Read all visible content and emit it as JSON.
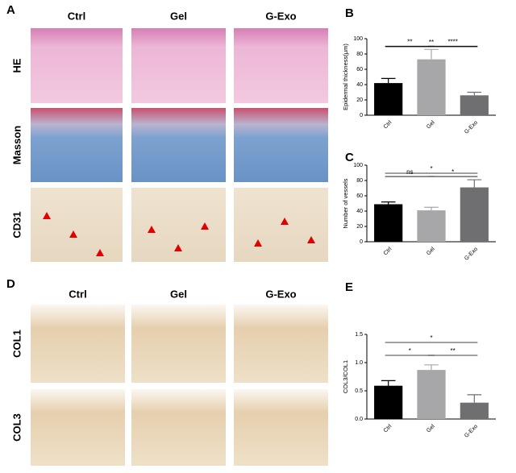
{
  "figure": {
    "panel_a": {
      "label": "A",
      "columns": [
        "Ctrl",
        "Gel",
        "G-Exo"
      ],
      "rows": [
        "HE",
        "Masson",
        "CD31"
      ]
    },
    "panel_d": {
      "label": "D",
      "columns": [
        "Ctrl",
        "Gel",
        "G-Exo"
      ],
      "rows": [
        "COL1",
        "COL3"
      ]
    }
  },
  "chart_data": [
    {
      "type": "bar",
      "panel_label": "B",
      "y_label": "Epidermal thickness(μm)",
      "categories": [
        "Ctrl",
        "Gel",
        "G-Exo"
      ],
      "values": [
        42,
        73,
        26
      ],
      "errors": [
        6,
        13,
        4
      ],
      "colors": [
        "#000000",
        "#a7a7aa",
        "#6f6f72"
      ],
      "ylim": [
        0,
        100
      ],
      "yticks": [
        0,
        20,
        40,
        60,
        80,
        100
      ],
      "annotations": [
        {
          "label": "**",
          "between": [
            "Ctrl",
            "G-Exo"
          ]
        },
        {
          "label": "**",
          "between": [
            "Ctrl",
            "Gel"
          ]
        },
        {
          "label": "****",
          "between": [
            "Gel",
            "G-Exo"
          ]
        }
      ]
    },
    {
      "type": "bar",
      "panel_label": "C",
      "y_label": "Number of vessels",
      "categories": [
        "Ctrl",
        "Gel",
        "G-Exo"
      ],
      "values": [
        49,
        41,
        71
      ],
      "errors": [
        3,
        4,
        10
      ],
      "colors": [
        "#000000",
        "#a7a7aa",
        "#6f6f72"
      ],
      "ylim": [
        0,
        100
      ],
      "yticks": [
        0,
        20,
        40,
        60,
        80,
        100
      ],
      "annotations": [
        {
          "label": "*",
          "between": [
            "Ctrl",
            "G-Exo"
          ]
        },
        {
          "label": "ns",
          "between": [
            "Ctrl",
            "Gel"
          ]
        },
        {
          "label": "*",
          "between": [
            "Gel",
            "G-Exo"
          ]
        }
      ]
    },
    {
      "type": "bar",
      "panel_label": "E",
      "y_label": "COL3/COL1",
      "categories": [
        "Ctrl",
        "Gel",
        "G-Exo"
      ],
      "values": [
        0.59,
        0.87,
        0.29
      ],
      "errors": [
        0.09,
        0.09,
        0.14
      ],
      "colors": [
        "#000000",
        "#a7a7aa",
        "#6f6f72"
      ],
      "ylim": [
        0,
        1.5
      ],
      "yticks": [
        {
          "value": 0,
          "label": "0.0"
        },
        {
          "value": 0.5,
          "label": "0.5"
        },
        {
          "value": 1,
          "label": "1.0"
        },
        {
          "value": 1.5,
          "label": "1.5"
        }
      ],
      "annotations": [
        {
          "label": "*",
          "between": [
            "Ctrl",
            "G-Exo"
          ]
        },
        {
          "label": "*",
          "between": [
            "Ctrl",
            "Gel"
          ]
        },
        {
          "label": "**",
          "between": [
            "Gel",
            "G-Exo"
          ]
        }
      ]
    }
  ]
}
